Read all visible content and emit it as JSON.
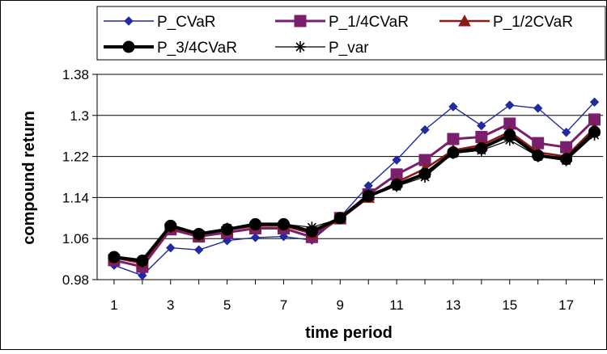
{
  "chart_data": {
    "type": "line",
    "title": "",
    "xlabel": "time period",
    "ylabel": "compound return",
    "x": [
      1,
      2,
      3,
      4,
      5,
      6,
      7,
      8,
      9,
      10,
      11,
      12,
      13,
      14,
      15,
      16,
      17,
      18
    ],
    "xticks": [
      "1",
      "3",
      "5",
      "7",
      "9",
      "11",
      "13",
      "15",
      "17"
    ],
    "xtick_values": [
      1,
      3,
      5,
      7,
      9,
      11,
      13,
      15,
      17
    ],
    "yticks": [
      "0.98",
      "1.06",
      "1.14",
      "1.22",
      "1.3",
      "1.38"
    ],
    "ytick_values": [
      0.98,
      1.06,
      1.14,
      1.22,
      1.3,
      1.38
    ],
    "xlim": [
      0.4,
      18.3
    ],
    "ylim": [
      0.98,
      1.38
    ],
    "grid": "horizontal",
    "legend_position": "top",
    "series": [
      {
        "name": "P_CVaR",
        "color": "#1f2aa3",
        "marker": "diamond",
        "values": [
          1.008,
          0.988,
          1.042,
          1.038,
          1.056,
          1.062,
          1.064,
          1.057,
          1.102,
          1.163,
          1.213,
          1.272,
          1.317,
          1.28,
          1.32,
          1.314,
          1.267,
          1.326
        ]
      },
      {
        "name": "P_1/4CVaR",
        "color": "#7a1f6e",
        "marker": "square",
        "values": [
          1.018,
          1.005,
          1.078,
          1.064,
          1.072,
          1.08,
          1.08,
          1.063,
          1.1,
          1.146,
          1.185,
          1.213,
          1.254,
          1.258,
          1.284,
          1.246,
          1.238,
          1.292
        ]
      },
      {
        "name": "P_1/2CVaR",
        "color": "#8b1a1a",
        "marker": "triangle",
        "values": [
          1.023,
          1.012,
          1.082,
          1.067,
          1.077,
          1.085,
          1.085,
          1.07,
          1.098,
          1.14,
          1.17,
          1.196,
          1.232,
          1.242,
          1.268,
          1.228,
          1.22,
          1.275
        ]
      },
      {
        "name": "P_3/4CVaR",
        "color": "#000000",
        "marker": "circle",
        "values": [
          1.024,
          1.017,
          1.085,
          1.069,
          1.078,
          1.088,
          1.088,
          1.074,
          1.1,
          1.143,
          1.165,
          1.186,
          1.228,
          1.236,
          1.262,
          1.222,
          1.215,
          1.268
        ]
      },
      {
        "name": "P_var",
        "color": "#000000",
        "marker": "asterisk",
        "values": [
          1.024,
          1.015,
          1.083,
          1.067,
          1.08,
          1.088,
          1.088,
          1.082,
          1.099,
          1.145,
          1.162,
          1.18,
          1.226,
          1.232,
          1.252,
          1.22,
          1.212,
          1.262
        ]
      }
    ]
  }
}
